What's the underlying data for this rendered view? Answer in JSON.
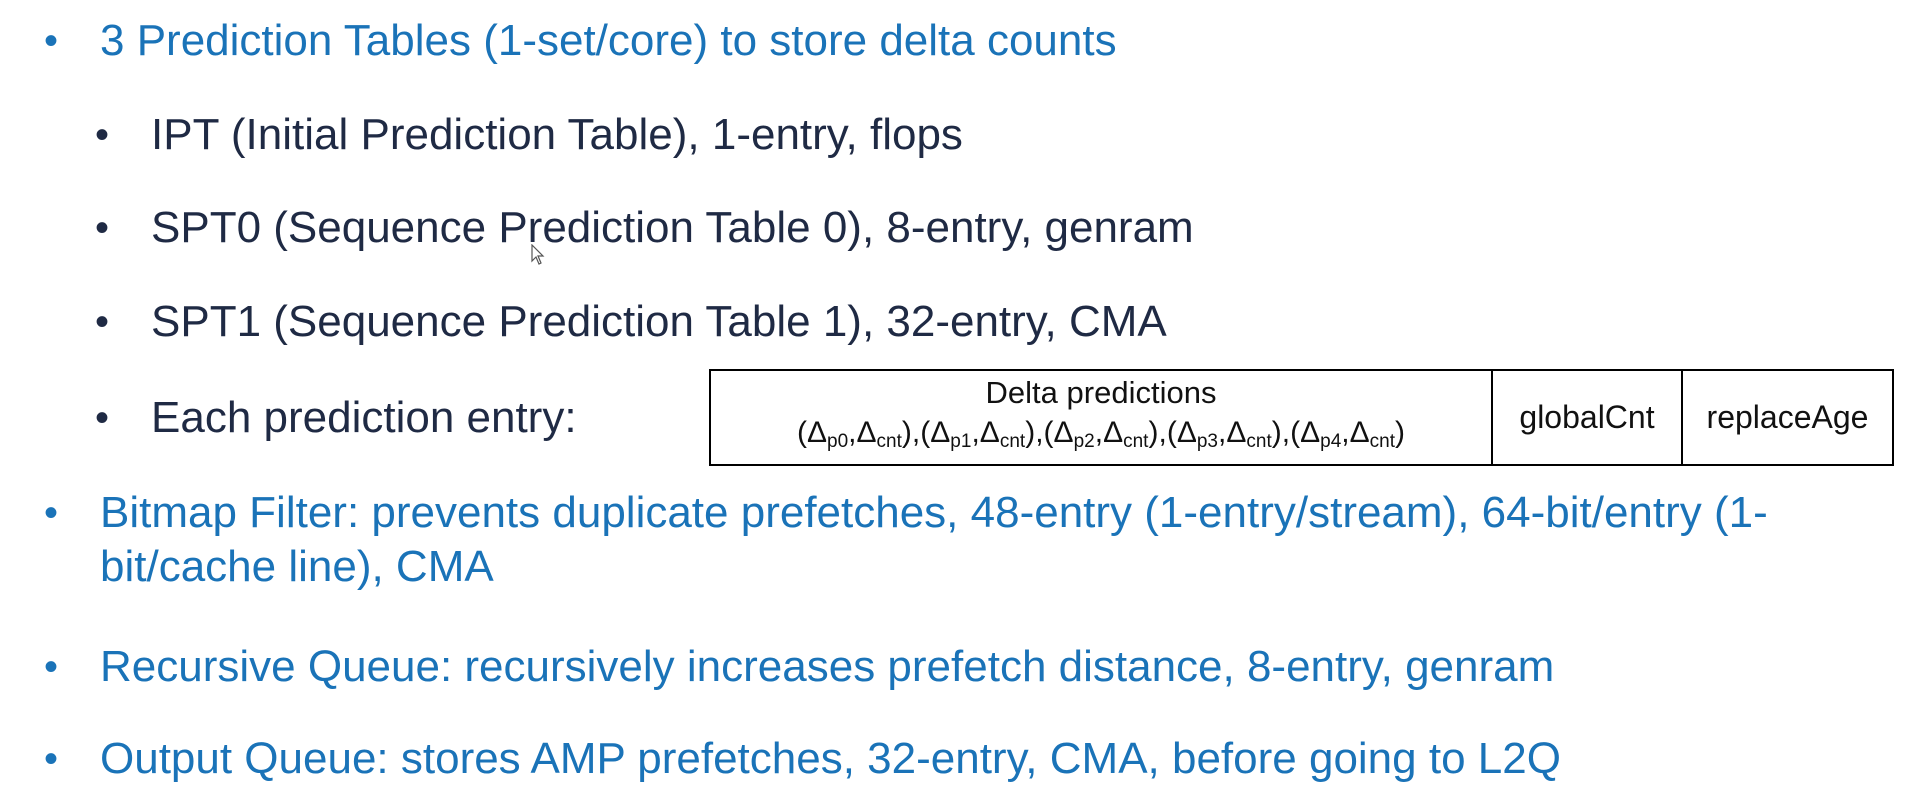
{
  "bullets": [
    {
      "text": "3 Prediction Tables (1-set/core) to store delta counts"
    },
    {
      "text": "IPT (Initial Prediction Table), 1-entry, flops"
    },
    {
      "text": "SPT0 (Sequence Prediction Table 0), 8-entry, genram"
    },
    {
      "text": "SPT1 (Sequence Prediction Table 1), 32-entry, CMA"
    },
    {
      "text": "Each prediction entry:"
    },
    {
      "text": "Bitmap Filter: prevents duplicate prefetches, 48-entry (1-entry/stream), 64-bit/entry (1-bit/cache line), CMA"
    },
    {
      "text": "Recursive Queue: recursively increases prefetch distance, 8-entry, genram"
    },
    {
      "text": "Output Queue: stores AMP prefetches, 32-entry, CMA, before going to L2Q"
    }
  ],
  "bullet_glyph": "•",
  "entry_table": {
    "delta_title": "Delta predictions",
    "delta_symbol": "Δ",
    "delta_pairs": [
      {
        "p": "p0",
        "c": "cnt"
      },
      {
        "p": "p1",
        "c": "cnt"
      },
      {
        "p": "p2",
        "c": "cnt"
      },
      {
        "p": "p3",
        "c": "cnt"
      },
      {
        "p": "p4",
        "c": "cnt"
      }
    ],
    "global_cnt": "globalCnt",
    "replace_age": "replaceAge"
  },
  "colors": {
    "level1": "#1a73b8",
    "level2": "#1f2a44"
  },
  "icons": {
    "cursor": "mouse-pointer-icon"
  }
}
